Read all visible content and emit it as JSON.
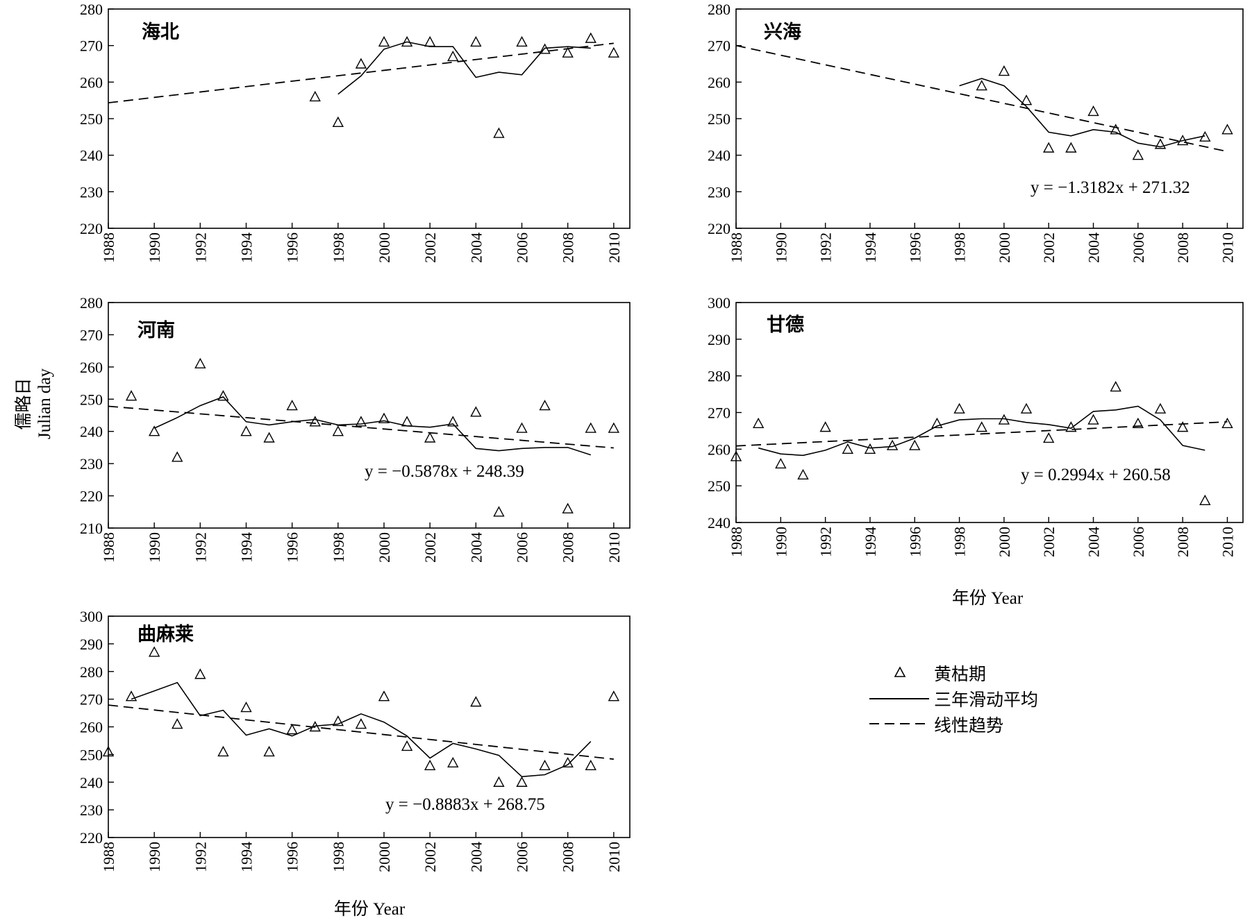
{
  "figure": {
    "y_axis_label_cn": "儒略日",
    "y_axis_label_en": "Julian day",
    "x_axis_label": "年份 Year",
    "legend": {
      "points": "黄枯期",
      "moving_average": "三年滑动平均",
      "trend": "线性趋势"
    }
  },
  "chart_data": [
    {
      "type": "scatter",
      "title": "海北",
      "equation": "",
      "xlim": [
        1988,
        2010.7
      ],
      "ylim": [
        220,
        280
      ],
      "xticks": [
        1988,
        1990,
        1992,
        1994,
        1996,
        1998,
        2000,
        2002,
        2004,
        2006,
        2008,
        2010
      ],
      "yticks": [
        220,
        230,
        240,
        250,
        260,
        270,
        280
      ],
      "points": [
        [
          1997,
          256
        ],
        [
          1998,
          249
        ],
        [
          1999,
          265
        ],
        [
          2000,
          271
        ],
        [
          2001,
          271
        ],
        [
          2002,
          271
        ],
        [
          2003,
          267
        ],
        [
          2004,
          271
        ],
        [
          2005,
          246
        ],
        [
          2006,
          271
        ],
        [
          2007,
          269
        ],
        [
          2008,
          268
        ],
        [
          2009,
          272
        ],
        [
          2010,
          268
        ]
      ],
      "moving_average": [
        [
          1998,
          256.7
        ],
        [
          1999,
          261.7
        ],
        [
          2000,
          269
        ],
        [
          2001,
          271
        ],
        [
          2002,
          269.7
        ],
        [
          2003,
          269.7
        ],
        [
          2004,
          261.3
        ],
        [
          2005,
          262.7
        ],
        [
          2006,
          262
        ],
        [
          2007,
          269.3
        ],
        [
          2008,
          269.7
        ],
        [
          2009,
          269.3
        ]
      ],
      "trend": {
        "slope": 0.74,
        "intercept": 253.6
      }
    },
    {
      "type": "scatter",
      "title": "兴海",
      "equation": "y = −1.3182x + 271.32",
      "xlim": [
        1988,
        2010.7
      ],
      "ylim": [
        220,
        280
      ],
      "xticks": [
        1988,
        1990,
        1992,
        1994,
        1996,
        1998,
        2000,
        2002,
        2004,
        2006,
        2008,
        2010
      ],
      "yticks": [
        220,
        230,
        240,
        250,
        260,
        270,
        280
      ],
      "points": [
        [
          1999,
          259
        ],
        [
          2000,
          263
        ],
        [
          2001,
          255
        ],
        [
          2002,
          242
        ],
        [
          2003,
          242
        ],
        [
          2004,
          252
        ],
        [
          2005,
          247
        ],
        [
          2006,
          240
        ],
        [
          2007,
          243
        ],
        [
          2008,
          244
        ],
        [
          2009,
          245
        ],
        [
          2010,
          247
        ]
      ],
      "moving_average": [
        [
          1998,
          259
        ],
        [
          1999,
          261
        ],
        [
          2000,
          259
        ],
        [
          2001,
          253.3
        ],
        [
          2002,
          246.3
        ],
        [
          2003,
          245.3
        ],
        [
          2004,
          247
        ],
        [
          2005,
          246.3
        ],
        [
          2006,
          243.3
        ],
        [
          2007,
          242.3
        ],
        [
          2008,
          244
        ],
        [
          2009,
          245.3
        ]
      ],
      "trend": {
        "slope": -1.3182,
        "intercept": 271.32
      }
    },
    {
      "type": "scatter",
      "title": "河南",
      "equation": "y = −0.5878x + 248.39",
      "xlim": [
        1988,
        2010.7
      ],
      "ylim": [
        210,
        280
      ],
      "xticks": [
        1988,
        1990,
        1992,
        1994,
        1996,
        1998,
        2000,
        2002,
        2004,
        2006,
        2008,
        2010
      ],
      "yticks": [
        210,
        220,
        230,
        240,
        250,
        260,
        270,
        280
      ],
      "points": [
        [
          1989,
          251
        ],
        [
          1990,
          240
        ],
        [
          1991,
          232
        ],
        [
          1992,
          261
        ],
        [
          1993,
          251
        ],
        [
          1994,
          240
        ],
        [
          1995,
          238
        ],
        [
          1996,
          248
        ],
        [
          1997,
          243
        ],
        [
          1998,
          240
        ],
        [
          1999,
          243
        ],
        [
          2000,
          244
        ],
        [
          2001,
          243
        ],
        [
          2002,
          238
        ],
        [
          2003,
          243
        ],
        [
          2004,
          246
        ],
        [
          2005,
          215
        ],
        [
          2006,
          241
        ],
        [
          2007,
          248
        ],
        [
          2008,
          216
        ],
        [
          2009,
          241
        ],
        [
          2010,
          241
        ]
      ],
      "moving_average": [
        [
          1990,
          241
        ],
        [
          1991,
          244.3
        ],
        [
          1992,
          248
        ],
        [
          1993,
          250.7
        ],
        [
          1994,
          243
        ],
        [
          1995,
          242
        ],
        [
          1996,
          243
        ],
        [
          1997,
          243.7
        ],
        [
          1998,
          242
        ],
        [
          1999,
          242.3
        ],
        [
          2000,
          243.3
        ],
        [
          2001,
          241.7
        ],
        [
          2002,
          241.3
        ],
        [
          2003,
          242.3
        ],
        [
          2004,
          234.7
        ],
        [
          2005,
          234
        ],
        [
          2006,
          234.7
        ],
        [
          2007,
          235
        ],
        [
          2008,
          235
        ],
        [
          2009,
          232.7
        ]
      ],
      "trend": {
        "slope": -0.5878,
        "intercept": 248.39
      }
    },
    {
      "type": "scatter",
      "title": "甘德",
      "equation": "y = 0.2994x + 260.58",
      "xlim": [
        1988,
        2010.7
      ],
      "ylim": [
        240,
        300
      ],
      "xticks": [
        1988,
        1990,
        1992,
        1994,
        1996,
        1998,
        2000,
        2002,
        2004,
        2006,
        2008,
        2010
      ],
      "yticks": [
        240,
        250,
        260,
        270,
        280,
        290,
        300
      ],
      "points": [
        [
          1988,
          258
        ],
        [
          1989,
          267
        ],
        [
          1990,
          256
        ],
        [
          1991,
          253
        ],
        [
          1992,
          266
        ],
        [
          1993,
          260
        ],
        [
          1994,
          260
        ],
        [
          1995,
          261
        ],
        [
          1996,
          261
        ],
        [
          1997,
          267
        ],
        [
          1998,
          271
        ],
        [
          1999,
          266
        ],
        [
          2000,
          268
        ],
        [
          2001,
          271
        ],
        [
          2002,
          263
        ],
        [
          2003,
          266
        ],
        [
          2004,
          268
        ],
        [
          2005,
          277
        ],
        [
          2006,
          267
        ],
        [
          2007,
          271
        ],
        [
          2008,
          266
        ],
        [
          2009,
          246
        ],
        [
          2010,
          267
        ]
      ],
      "moving_average": [
        [
          1989,
          260.3
        ],
        [
          1990,
          258.7
        ],
        [
          1991,
          258.3
        ],
        [
          1992,
          259.7
        ],
        [
          1993,
          262
        ],
        [
          1994,
          260.3
        ],
        [
          1995,
          260.7
        ],
        [
          1996,
          263
        ],
        [
          1997,
          266.3
        ],
        [
          1998,
          268
        ],
        [
          1999,
          268.3
        ],
        [
          2000,
          268.3
        ],
        [
          2001,
          267.3
        ],
        [
          2002,
          266.7
        ],
        [
          2003,
          265.7
        ],
        [
          2004,
          270.3
        ],
        [
          2005,
          270.7
        ],
        [
          2006,
          271.7
        ],
        [
          2007,
          268
        ],
        [
          2008,
          261
        ],
        [
          2009,
          259.7
        ]
      ],
      "trend": {
        "slope": 0.2994,
        "intercept": 260.58
      }
    },
    {
      "type": "scatter",
      "title": "曲麻莱",
      "equation": "y = −0.8883x + 268.75",
      "xlim": [
        1988,
        2010.7
      ],
      "ylim": [
        220,
        300
      ],
      "xticks": [
        1988,
        1990,
        1992,
        1994,
        1996,
        1998,
        2000,
        2002,
        2004,
        2006,
        2008,
        2010
      ],
      "yticks": [
        220,
        230,
        240,
        250,
        260,
        270,
        280,
        290,
        300
      ],
      "points": [
        [
          1988,
          251
        ],
        [
          1989,
          271
        ],
        [
          1990,
          287
        ],
        [
          1991,
          261
        ],
        [
          1992,
          279
        ],
        [
          1993,
          251
        ],
        [
          1994,
          267
        ],
        [
          1995,
          251
        ],
        [
          1996,
          259
        ],
        [
          1997,
          260
        ],
        [
          1998,
          262
        ],
        [
          1999,
          261
        ],
        [
          2000,
          271
        ],
        [
          2001,
          253
        ],
        [
          2002,
          246
        ],
        [
          2003,
          247
        ],
        [
          2004,
          269
        ],
        [
          2005,
          240
        ],
        [
          2006,
          240
        ],
        [
          2007,
          246
        ],
        [
          2008,
          247
        ],
        [
          2009,
          246
        ],
        [
          2010,
          271
        ]
      ],
      "moving_average": [
        [
          1989,
          270
        ],
        [
          1990,
          273
        ],
        [
          1991,
          276
        ],
        [
          1992,
          264
        ],
        [
          1993,
          266
        ],
        [
          1994,
          257
        ],
        [
          1995,
          259.3
        ],
        [
          1996,
          256.7
        ],
        [
          1997,
          260.3
        ],
        [
          1998,
          261
        ],
        [
          1999,
          264.7
        ],
        [
          2000,
          261.7
        ],
        [
          2001,
          256.7
        ],
        [
          2002,
          248.7
        ],
        [
          2003,
          254
        ],
        [
          2004,
          252
        ],
        [
          2005,
          249.7
        ],
        [
          2006,
          242
        ],
        [
          2007,
          242.7
        ],
        [
          2008,
          246.3
        ],
        [
          2009,
          254.7
        ]
      ],
      "trend": {
        "slope": -0.8883,
        "intercept": 268.75
      }
    }
  ]
}
